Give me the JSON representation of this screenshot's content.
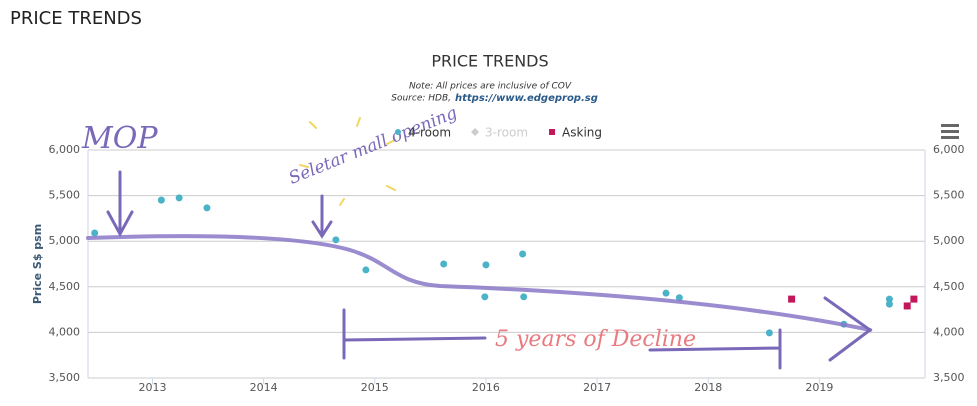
{
  "page_title": "PRICE TRENDS",
  "chart_data": {
    "type": "scatter",
    "title": "PRICE TRENDS",
    "subtitle": [
      "Note: All prices are inclusive of COV",
      "Source: HDB,",
      "https://www.edgeprop.sg"
    ],
    "y_label": "Price S$ psm",
    "xlim": [
      2012.42,
      2019.95
    ],
    "xticks": [
      2013,
      2014,
      2015,
      2016,
      2017,
      2018,
      2019
    ],
    "ylim": [
      3500,
      6000
    ],
    "yticks": [
      {
        "value": 3500,
        "label": "3,500"
      },
      {
        "value": 4000,
        "label": "4,000"
      },
      {
        "value": 4500,
        "label": "4,500"
      },
      {
        "value": 5000,
        "label": "5,000"
      },
      {
        "value": 5500,
        "label": "5,500"
      },
      {
        "value": 6000,
        "label": "6,000"
      }
    ],
    "y2lim": [
      3500,
      6000
    ],
    "y2ticks": [
      {
        "value": 3500,
        "label": "3,500"
      },
      {
        "value": 4000,
        "label": "4,000"
      },
      {
        "value": 4500,
        "label": "4,500"
      },
      {
        "value": 5000,
        "label": "5,000"
      },
      {
        "value": 5500,
        "label": "5,500"
      },
      {
        "value": 6000,
        "label": "6,000"
      }
    ],
    "grid": true,
    "legend": "top",
    "series": [
      {
        "name": "4-room",
        "color": "#4bb3c8",
        "marker": "circle",
        "x": [
          2012.48,
          2013.08,
          2013.24,
          2013.49,
          2014.65,
          2014.92,
          2015.62,
          2016.0,
          2015.99,
          2016.33,
          2016.34,
          2017.62,
          2017.74,
          2018.55,
          2019.22,
          2019.63,
          2019.63
        ],
        "values": [
          5090,
          5450,
          5475,
          5365,
          5015,
          4685,
          4750,
          4740,
          4390,
          4860,
          4390,
          4430,
          4380,
          3995,
          4090,
          4365,
          4310
        ]
      },
      {
        "name": "3-room",
        "color": "#cccccc",
        "marker": "diamond",
        "hidden": true,
        "x": [],
        "values": []
      },
      {
        "name": "Asking",
        "color": "#c2185b",
        "marker": "square",
        "x": [
          2018.75,
          2019.79,
          2019.85
        ],
        "values": [
          4365,
          4290,
          4365
        ]
      }
    ],
    "annotations": [
      "MOP",
      "Seletar mall opening",
      "5 years of Decline"
    ]
  }
}
